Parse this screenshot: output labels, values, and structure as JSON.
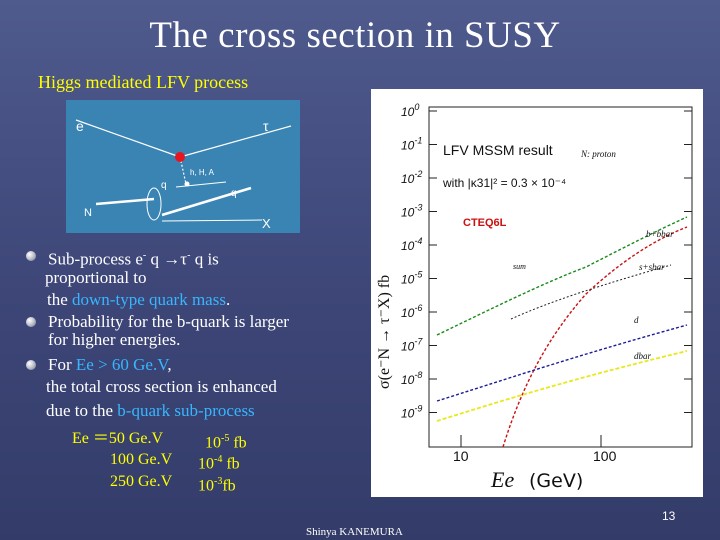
{
  "title": "The cross section in SUSY",
  "subtitle": "Higgs mediated LFV process",
  "diagram": {
    "labels": {
      "e": "e",
      "tau": "τ",
      "higgs": "h, H, A",
      "q_left": "q",
      "q_right": "q",
      "N": "N",
      "X": "X"
    }
  },
  "bullets": [
    {
      "line1": "Sub-process   e",
      "sup1": "-",
      "mid": " q →τ",
      "sup2": "-",
      "end": " q   is",
      "line2": "proportional to",
      "line3_pre": "the ",
      "line3_hl": "down-type quark mass",
      "line3_post": "."
    },
    {
      "line1": "Probability for the b-quark is larger",
      "line2": "for higher energies."
    },
    {
      "line1_pre": "For ",
      "line1_hl": "Ee > 60 Ge.V",
      "line1_post": ",",
      "line2": "the total cross section is enhanced",
      "line3_pre": "due to the ",
      "line3_hl": "b-quark sub-process"
    }
  ],
  "cross_sections": [
    {
      "energy": "Ee  ＝50 Ge.V",
      "mant": "10",
      "exp": "-5",
      "unit": " fb"
    },
    {
      "energy": "100 Ge.V",
      "mant": "10",
      "exp": "-4",
      "unit": " fb"
    },
    {
      "energy": "250 Ge.V",
      "mant": "10",
      "exp": "-3",
      "unit": "fb"
    }
  ],
  "plot": {
    "ytick_labels": [
      "10",
      "10",
      "10",
      "10",
      "10",
      "10",
      "10",
      "10",
      "10",
      "10"
    ],
    "ytick_exps": [
      "0",
      "-1",
      "-2",
      "-3",
      "-4",
      "-5",
      "-6",
      "-7",
      "-8",
      "-9"
    ],
    "xtick_labels": [
      "10",
      "100"
    ],
    "ylabel": "σ(e⁻N → τ⁻X) fb",
    "xlabel": "Ee",
    "xlabel_unit": "(GeV)",
    "legend_title": "LFV MSSM result",
    "legend_target": "N: proton",
    "legend_coupling": "with |κ31|² = 0.3 × 10⁻⁴",
    "pdf_label": "CTEQ6L",
    "curve_labels": [
      "b+bbar",
      "s+sbar",
      "sum",
      "d",
      "dbar"
    ],
    "colors": {
      "sum": "#1a8a1a",
      "b": "#cc1010",
      "d": "#1c1c9c",
      "dbar": "#e8e81a",
      "s": "#222222"
    }
  },
  "footer": "Shinya KANEMURA",
  "page_number": "13"
}
